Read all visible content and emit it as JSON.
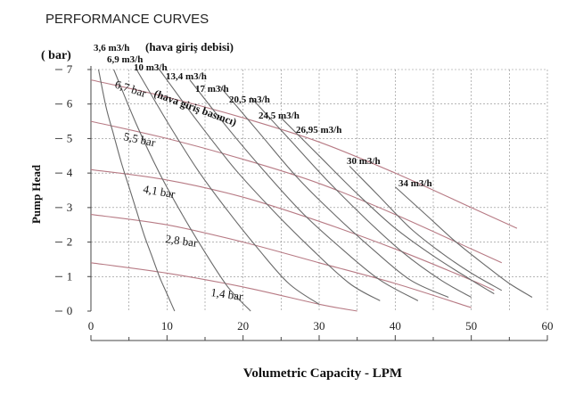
{
  "heading": "PERFORMANCE CURVES",
  "chart_data": {
    "type": "line",
    "ylabel": "Pump Head",
    "yunit": "( bar)",
    "xlabel": "Volumetric Capacity - LPM",
    "xlim": [
      0,
      60
    ],
    "ylim": [
      0,
      7
    ],
    "xticks": [
      "0",
      "10",
      "20",
      "30",
      "40",
      "50",
      "60"
    ],
    "yticks": [
      "0",
      "1",
      "2",
      "3",
      "4",
      "5",
      "6",
      "7"
    ],
    "grid": true,
    "pressure_series": [
      {
        "name": "6,7 bar",
        "x": [
          0,
          10,
          20,
          30,
          40,
          50,
          56
        ],
        "y": [
          6.7,
          6.2,
          5.6,
          4.9,
          4.0,
          3.0,
          2.4
        ]
      },
      {
        "name": "5,5 bar",
        "x": [
          0,
          10,
          20,
          30,
          40,
          50,
          54
        ],
        "y": [
          5.5,
          5.0,
          4.4,
          3.7,
          2.8,
          1.8,
          1.4
        ]
      },
      {
        "name": "4,1 bar",
        "x": [
          0,
          10,
          20,
          30,
          40,
          50,
          53
        ],
        "y": [
          4.1,
          3.8,
          3.3,
          2.6,
          1.8,
          0.9,
          0.6
        ]
      },
      {
        "name": "2,8 bar",
        "x": [
          0,
          10,
          20,
          30,
          40,
          50
        ],
        "y": [
          2.8,
          2.5,
          2.0,
          1.4,
          0.8,
          0.1
        ]
      },
      {
        "name": "1,4 bar",
        "x": [
          0,
          10,
          20,
          30,
          35
        ],
        "y": [
          1.4,
          1.1,
          0.7,
          0.2,
          0.0
        ]
      }
    ],
    "flow_series": [
      {
        "name": "3,6 m3/h",
        "x": [
          1,
          2,
          3,
          4,
          5,
          6,
          7,
          8,
          9,
          10,
          11
        ],
        "y": [
          7.0,
          5.9,
          5.1,
          4.3,
          3.6,
          2.9,
          2.2,
          1.6,
          1.0,
          0.5,
          0.0
        ]
      },
      {
        "name": "6,9 m3/h",
        "x": [
          3,
          6,
          9,
          12,
          15,
          18,
          21
        ],
        "y": [
          7.0,
          5.4,
          4.0,
          2.8,
          1.7,
          0.7,
          0.0
        ]
      },
      {
        "name": "10 m3/h",
        "x": [
          6,
          10,
          14,
          18,
          22,
          26,
          30
        ],
        "y": [
          7.0,
          5.5,
          4.1,
          2.9,
          1.8,
          0.8,
          0.2
        ]
      },
      {
        "name": "13,4 m3/h",
        "x": [
          9,
          14,
          19,
          24,
          29,
          34,
          38
        ],
        "y": [
          7.0,
          5.5,
          4.1,
          2.9,
          1.8,
          0.8,
          0.3
        ]
      },
      {
        "name": "17 m3/h",
        "x": [
          13,
          18,
          23,
          28,
          33,
          38,
          43
        ],
        "y": [
          6.7,
          5.3,
          4.0,
          2.8,
          1.8,
          0.9,
          0.3
        ]
      },
      {
        "name": "20,5 m3/h",
        "x": [
          17,
          22,
          27,
          32,
          37,
          42,
          47
        ],
        "y": [
          6.5,
          5.2,
          3.9,
          2.8,
          1.8,
          0.9,
          0.4
        ]
      },
      {
        "name": "24,5 m3/h",
        "x": [
          21,
          26,
          31,
          36,
          41,
          46,
          50
        ],
        "y": [
          6.2,
          5.0,
          3.8,
          2.7,
          1.7,
          0.9,
          0.4
        ]
      },
      {
        "name": "26,95 m3/h",
        "x": [
          25,
          30,
          35,
          40,
          45,
          50,
          53
        ],
        "y": [
          5.6,
          4.5,
          3.4,
          2.4,
          1.6,
          0.9,
          0.5
        ]
      },
      {
        "name": "30 m3/h",
        "x": [
          34,
          38,
          42,
          46,
          50,
          54
        ],
        "y": [
          4.2,
          3.3,
          2.4,
          1.7,
          1.1,
          0.6
        ]
      },
      {
        "name": "34 m3/h",
        "x": [
          40,
          44,
          48,
          52,
          55,
          58
        ],
        "y": [
          3.6,
          2.8,
          2.0,
          1.3,
          0.8,
          0.4
        ]
      }
    ],
    "annotations": {
      "flow_title": "(hava giriş debisi)",
      "pressure_title": "(hava giriş basıncı)"
    }
  }
}
